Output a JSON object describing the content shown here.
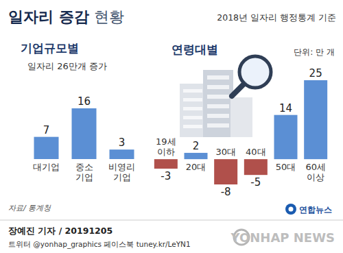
{
  "header": {
    "title": "일자리 증감",
    "title_light": "현황",
    "basis": "2018년 일자리 행정통계 기준"
  },
  "chart_data": [
    {
      "type": "bar",
      "title": "기업규모별",
      "subtitle": "일자리 26만개 증가",
      "categories": [
        "대기업",
        "중소기업",
        "비영리기업"
      ],
      "values": [
        7,
        16,
        3
      ],
      "color": "#5b8fd4",
      "ylim": [
        0,
        16
      ],
      "data_labels": true,
      "tick_labels": "x"
    },
    {
      "type": "bar",
      "title": "연령대별",
      "subtitle": "단위: 만 개",
      "categories": [
        "19세 이하",
        "20대",
        "30대",
        "40대",
        "50대",
        "60세 이상"
      ],
      "values": [
        -3,
        2,
        -8,
        -5,
        14,
        25
      ],
      "colors": [
        "#b0504b",
        "#5b8fd4",
        "#b0504b",
        "#b0504b",
        "#5b8fd4",
        "#5b8fd4"
      ],
      "ylim": [
        -8,
        25
      ],
      "data_labels": true,
      "tick_labels": "x"
    }
  ],
  "footer": {
    "source": "자료/ 통계청",
    "logo": "연합뉴스",
    "byline": "장예진 기자 / 20191205",
    "social": "트위터 @yonhap_graphics  페이스북 tuney.kr/LeYN1",
    "watermark": "YONHAP NEWS"
  }
}
